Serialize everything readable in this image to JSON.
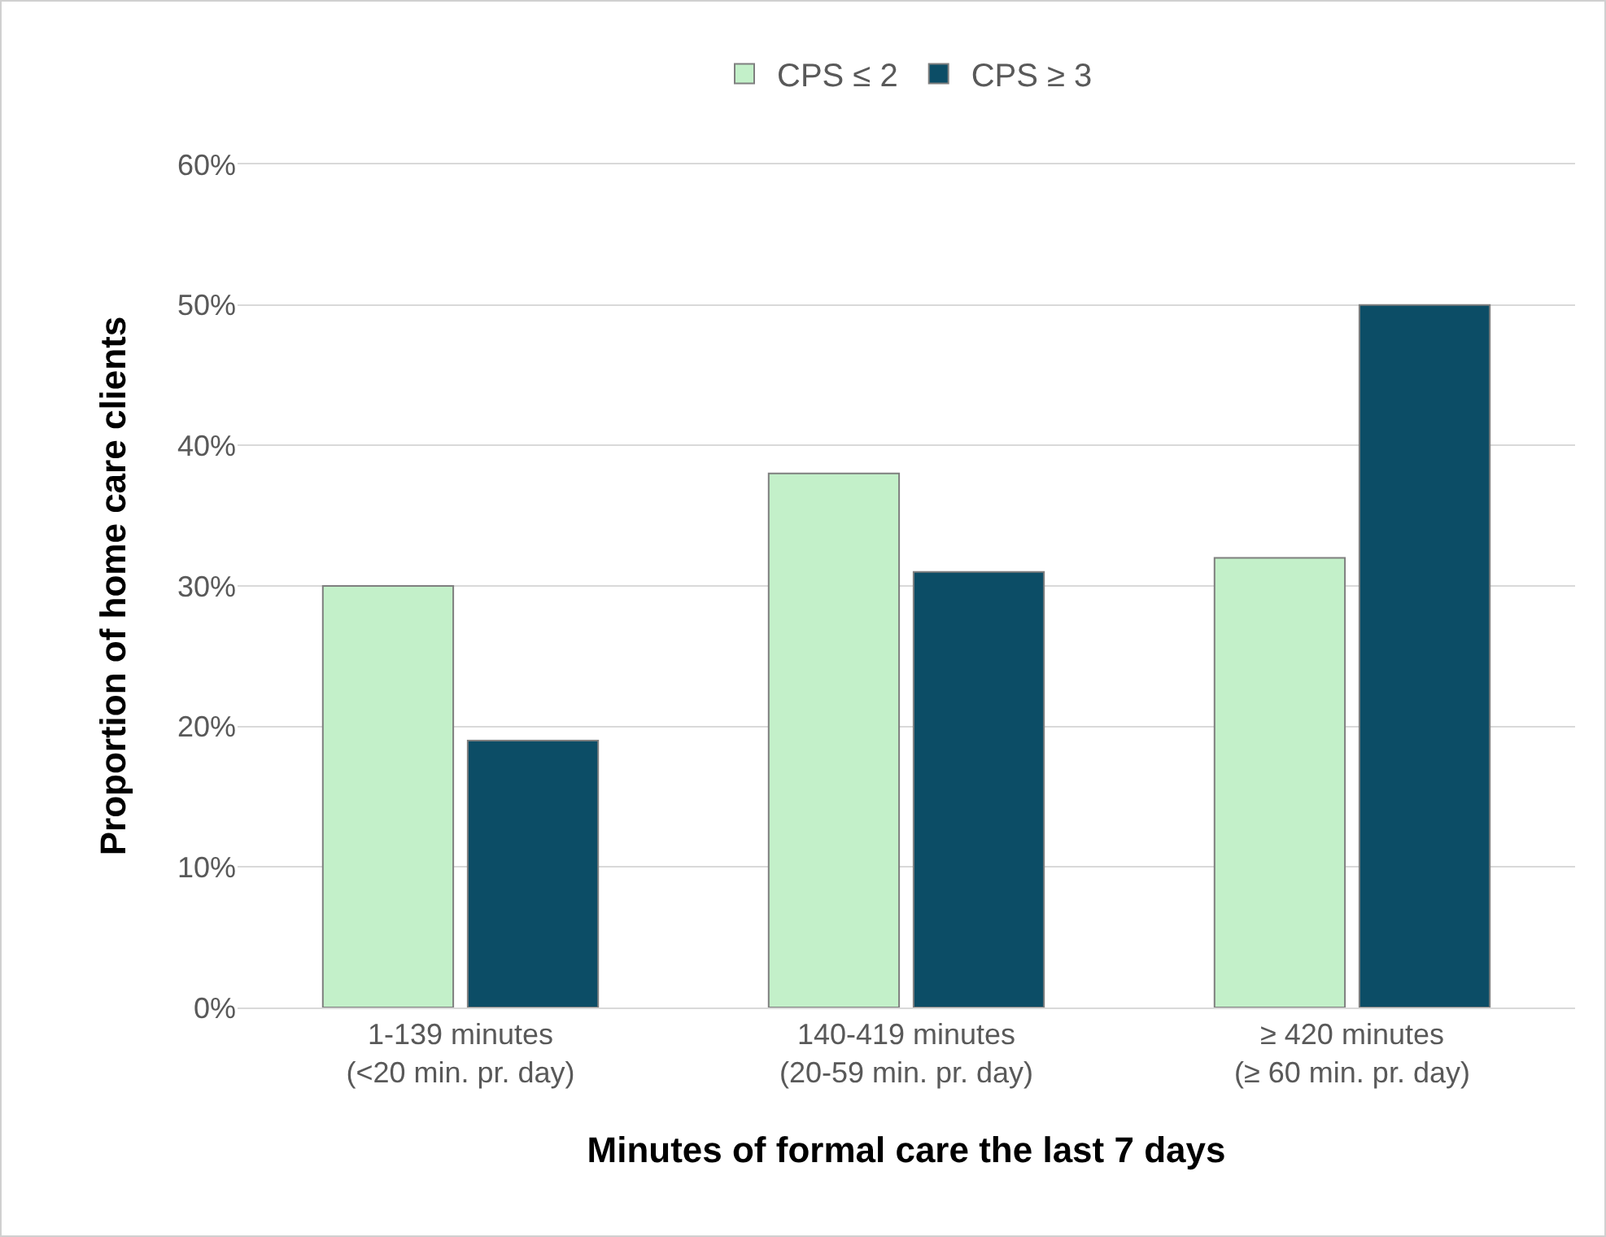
{
  "chart_data": {
    "type": "bar",
    "xlabel": "Minutes of formal care the last 7 days",
    "ylabel": "Proportion of home care clients",
    "categories": [
      "1-139 minutes\n(<20 min. pr. day)",
      "140-419 minutes\n(20-59 min. pr. day)",
      "≥ 420 minutes\n(≥ 60 min. pr. day)"
    ],
    "series": [
      {
        "name": "CPS ≤ 2",
        "color": "#c3f0c9",
        "values": [
          30,
          38,
          32
        ]
      },
      {
        "name": "CPS ≥ 3",
        "color": "#0c4d66",
        "values": [
          19,
          31,
          50
        ]
      }
    ],
    "ylim": [
      0,
      60
    ],
    "yticks": [
      {
        "value": 0,
        "label": "0%"
      },
      {
        "value": 10,
        "label": "10%"
      },
      {
        "value": 20,
        "label": "20%"
      },
      {
        "value": 30,
        "label": "30%"
      },
      {
        "value": 40,
        "label": "40%"
      },
      {
        "value": 50,
        "label": "50%"
      },
      {
        "value": 60,
        "label": "60%"
      }
    ],
    "grid": "y",
    "legend": "top"
  }
}
